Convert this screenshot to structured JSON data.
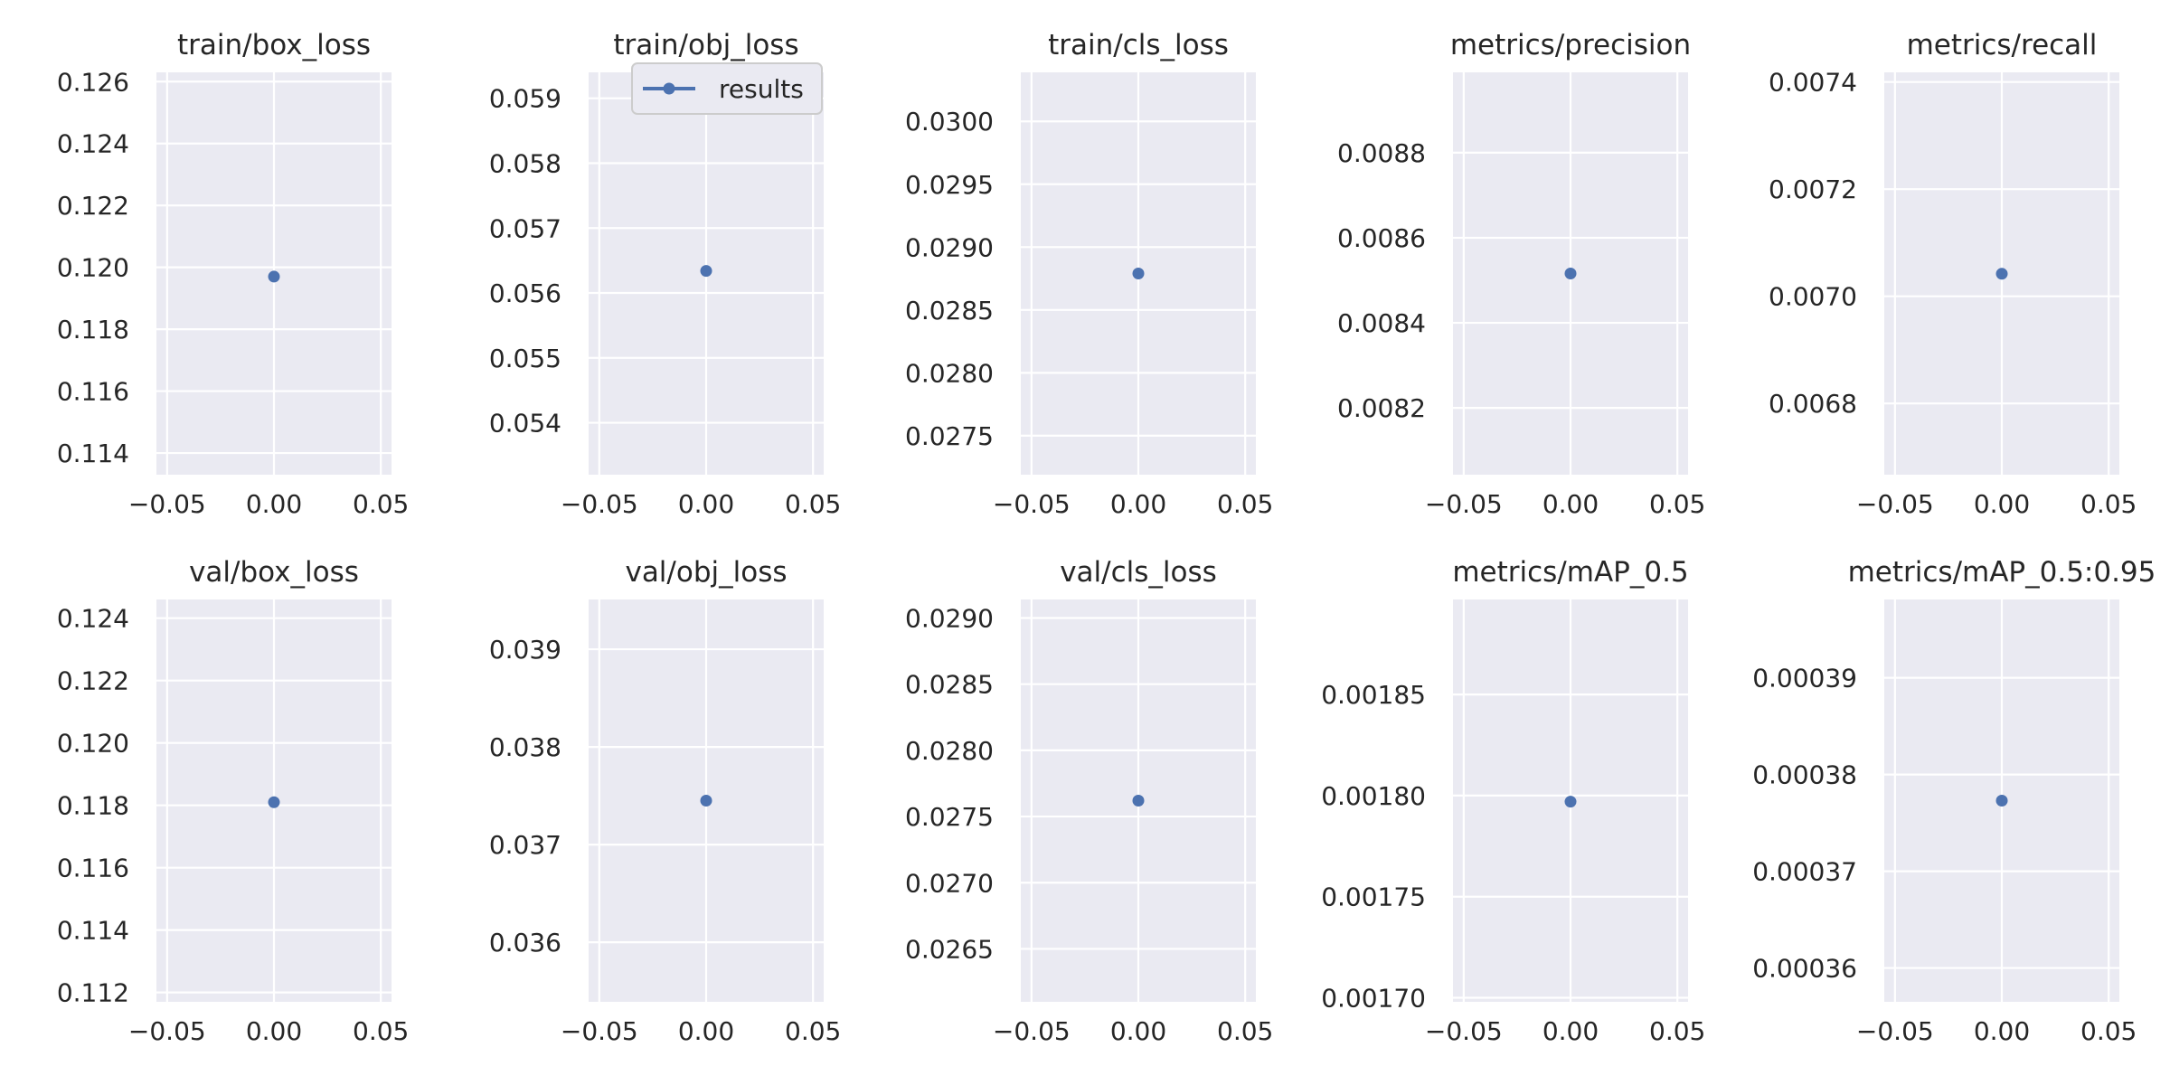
{
  "chart_data": [
    {
      "type": "scatter",
      "title": "train/box_loss",
      "series": [
        {
          "name": "results",
          "x": [
            0.0
          ],
          "y": [
            0.1197
          ]
        }
      ],
      "xlim": [
        -0.055,
        0.055
      ],
      "ylim": [
        0.1133,
        0.1263
      ],
      "xticks": [
        -0.05,
        0.0,
        0.05
      ],
      "xtick_labels": [
        "−0.05",
        "0.00",
        "0.05"
      ],
      "yticks": [
        0.114,
        0.116,
        0.118,
        0.12,
        0.122,
        0.124,
        0.126
      ],
      "ytick_labels": [
        "0.114",
        "0.116",
        "0.118",
        "0.120",
        "0.122",
        "0.124",
        "0.126"
      ]
    },
    {
      "type": "scatter",
      "title": "train/obj_loss",
      "series": [
        {
          "name": "results",
          "x": [
            0.0
          ],
          "y": [
            0.05634
          ]
        }
      ],
      "xlim": [
        -0.055,
        0.055
      ],
      "ylim": [
        0.0532,
        0.0594
      ],
      "xticks": [
        -0.05,
        0.0,
        0.05
      ],
      "xtick_labels": [
        "−0.05",
        "0.00",
        "0.05"
      ],
      "yticks": [
        0.054,
        0.055,
        0.056,
        0.057,
        0.058,
        0.059
      ],
      "ytick_labels": [
        "0.054",
        "0.055",
        "0.056",
        "0.057",
        "0.058",
        "0.059"
      ],
      "legend": {
        "position": "upper-right",
        "entries": [
          "results"
        ]
      }
    },
    {
      "type": "scatter",
      "title": "train/cls_loss",
      "series": [
        {
          "name": "results",
          "x": [
            0.0
          ],
          "y": [
            0.02879
          ]
        }
      ],
      "xlim": [
        -0.055,
        0.055
      ],
      "ylim": [
        0.02719,
        0.03039
      ],
      "xticks": [
        -0.05,
        0.0,
        0.05
      ],
      "xtick_labels": [
        "−0.05",
        "0.00",
        "0.05"
      ],
      "yticks": [
        0.0275,
        0.028,
        0.0285,
        0.029,
        0.0295,
        0.03
      ],
      "ytick_labels": [
        "0.0275",
        "0.0280",
        "0.0285",
        "0.0290",
        "0.0295",
        "0.0300"
      ]
    },
    {
      "type": "scatter",
      "title": "metrics/precision",
      "series": [
        {
          "name": "results",
          "x": [
            0.0
          ],
          "y": [
            0.008516
          ]
        }
      ],
      "xlim": [
        -0.055,
        0.055
      ],
      "ylim": [
        0.008043,
        0.008989
      ],
      "xticks": [
        -0.05,
        0.0,
        0.05
      ],
      "xtick_labels": [
        "−0.05",
        "0.00",
        "0.05"
      ],
      "yticks": [
        0.0082,
        0.0084,
        0.0086,
        0.0088
      ],
      "ytick_labels": [
        "0.0082",
        "0.0084",
        "0.0086",
        "0.0088"
      ]
    },
    {
      "type": "scatter",
      "title": "metrics/recall",
      "series": [
        {
          "name": "results",
          "x": [
            0.0
          ],
          "y": [
            0.007042
          ]
        }
      ],
      "xlim": [
        -0.055,
        0.055
      ],
      "ylim": [
        0.006667,
        0.007418
      ],
      "xticks": [
        -0.05,
        0.0,
        0.05
      ],
      "xtick_labels": [
        "−0.05",
        "0.00",
        "0.05"
      ],
      "yticks": [
        0.0068,
        0.007,
        0.0072,
        0.0074
      ],
      "ytick_labels": [
        "0.0068",
        "0.0070",
        "0.0072",
        "0.0074"
      ]
    },
    {
      "type": "scatter",
      "title": "val/box_loss",
      "series": [
        {
          "name": "results",
          "x": [
            0.0
          ],
          "y": [
            0.1181
          ]
        }
      ],
      "xlim": [
        -0.055,
        0.055
      ],
      "ylim": [
        0.1117,
        0.1246
      ],
      "xticks": [
        -0.05,
        0.0,
        0.05
      ],
      "xtick_labels": [
        "−0.05",
        "0.00",
        "0.05"
      ],
      "yticks": [
        0.112,
        0.114,
        0.116,
        0.118,
        0.12,
        0.122,
        0.124
      ],
      "ytick_labels": [
        "0.112",
        "0.114",
        "0.116",
        "0.118",
        "0.120",
        "0.122",
        "0.124"
      ]
    },
    {
      "type": "scatter",
      "title": "val/obj_loss",
      "series": [
        {
          "name": "results",
          "x": [
            0.0
          ],
          "y": [
            0.03745
          ]
        }
      ],
      "xlim": [
        -0.055,
        0.055
      ],
      "ylim": [
        0.03539,
        0.03951
      ],
      "xticks": [
        -0.05,
        0.0,
        0.05
      ],
      "xtick_labels": [
        "−0.05",
        "0.00",
        "0.05"
      ],
      "yticks": [
        0.036,
        0.037,
        0.038,
        0.039
      ],
      "ytick_labels": [
        "0.036",
        "0.037",
        "0.038",
        "0.039"
      ]
    },
    {
      "type": "scatter",
      "title": "val/cls_loss",
      "series": [
        {
          "name": "results",
          "x": [
            0.0
          ],
          "y": [
            0.02762
          ]
        }
      ],
      "xlim": [
        -0.055,
        0.055
      ],
      "ylim": [
        0.0261,
        0.02914
      ],
      "xticks": [
        -0.05,
        0.0,
        0.05
      ],
      "xtick_labels": [
        "−0.05",
        "0.00",
        "0.05"
      ],
      "yticks": [
        0.0265,
        0.027,
        0.0275,
        0.028,
        0.0285,
        0.029
      ],
      "ytick_labels": [
        "0.0265",
        "0.0270",
        "0.0275",
        "0.0280",
        "0.0285",
        "0.0290"
      ]
    },
    {
      "type": "scatter",
      "title": "metrics/mAP_0.5",
      "series": [
        {
          "name": "results",
          "x": [
            0.0
          ],
          "y": [
            0.001797
          ]
        }
      ],
      "xlim": [
        -0.055,
        0.055
      ],
      "ylim": [
        0.001698,
        0.001897
      ],
      "xticks": [
        -0.05,
        0.0,
        0.05
      ],
      "xtick_labels": [
        "−0.05",
        "0.00",
        "0.05"
      ],
      "yticks": [
        0.0017,
        0.00175,
        0.0018,
        0.00185
      ],
      "ytick_labels": [
        "0.00170",
        "0.00175",
        "0.00180",
        "0.00185"
      ]
    },
    {
      "type": "scatter",
      "title": "metrics/mAP_0.5:0.95",
      "series": [
        {
          "name": "results",
          "x": [
            0.0
          ],
          "y": [
            0.0003773
          ]
        }
      ],
      "xlim": [
        -0.055,
        0.055
      ],
      "ylim": [
        0.0003565,
        0.0003981
      ],
      "xticks": [
        -0.05,
        0.0,
        0.05
      ],
      "xtick_labels": [
        "−0.05",
        "0.00",
        "0.05"
      ],
      "yticks": [
        0.00036,
        0.00037,
        0.00038,
        0.00039
      ],
      "ytick_labels": [
        "0.00036",
        "0.00037",
        "0.00038",
        "0.00039"
      ]
    }
  ],
  "style": {
    "axes_facecolor": "#eaeaf2",
    "grid_color": "#ffffff",
    "marker_color": "#4c72b0",
    "text_color": "#262626",
    "legend_edge_color": "#cccccc"
  }
}
